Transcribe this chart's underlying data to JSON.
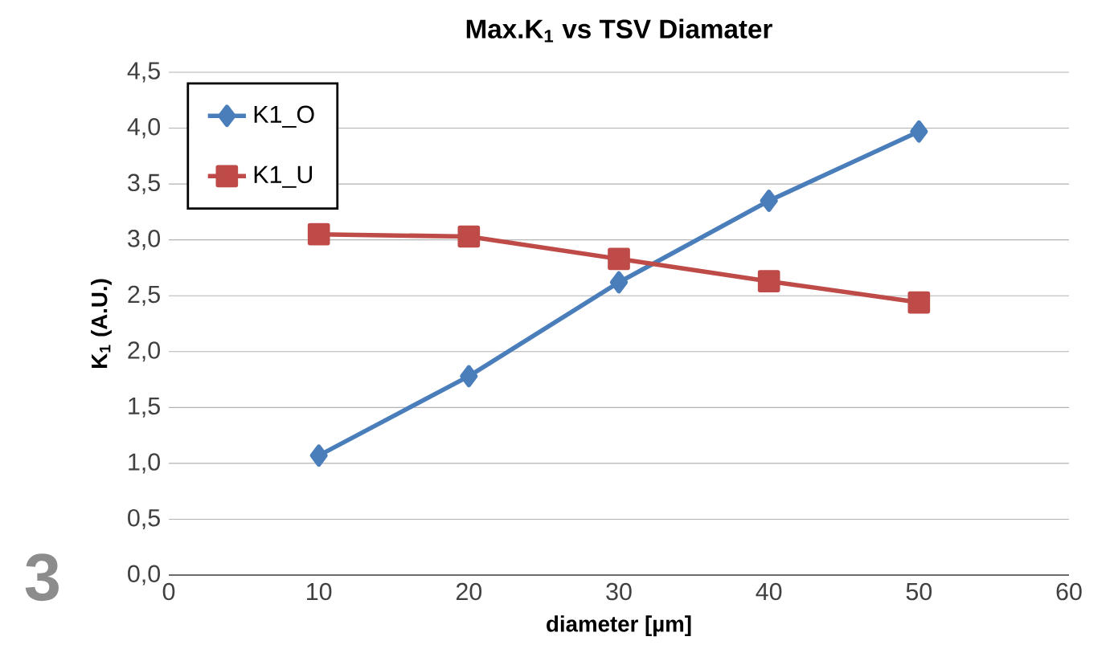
{
  "chart_data": {
    "type": "line",
    "title": "Max.K$_{1}$ vs TSV  Diamater",
    "xlabel": "diameter [µm]",
    "ylabel": "K$_{1}$ (A.U.)",
    "x": [
      10,
      20,
      30,
      40,
      50
    ],
    "series": [
      {
        "name": "K1_O",
        "color": "#4a7ebb",
        "marker": "diamond",
        "values": [
          1.07,
          1.78,
          2.62,
          3.35,
          3.97
        ]
      },
      {
        "name": "K1_U",
        "color": "#be4b48",
        "marker": "square",
        "values": [
          3.05,
          3.03,
          2.83,
          2.63,
          2.44
        ]
      }
    ],
    "xlim": [
      0,
      60
    ],
    "xticks": [
      0,
      10,
      20,
      30,
      40,
      50,
      60
    ],
    "ylim": [
      0,
      4.5
    ],
    "yticks": [
      {
        "value": 0,
        "label": "0,0"
      },
      {
        "value": 0.5,
        "label": "0,5"
      },
      {
        "value": 1,
        "label": "1,0"
      },
      {
        "value": 1.5,
        "label": "1,5"
      },
      {
        "value": 2,
        "label": "2,0"
      },
      {
        "value": 2.5,
        "label": "2,5"
      },
      {
        "value": 3,
        "label": "3,0"
      },
      {
        "value": 3.5,
        "label": "3,5"
      },
      {
        "value": 4,
        "label": "4,0"
      },
      {
        "value": 4.5,
        "label": "4,5"
      }
    ],
    "grid": "y",
    "legend": "top left",
    "line_style": "solid",
    "annotations": [
      "3"
    ]
  }
}
